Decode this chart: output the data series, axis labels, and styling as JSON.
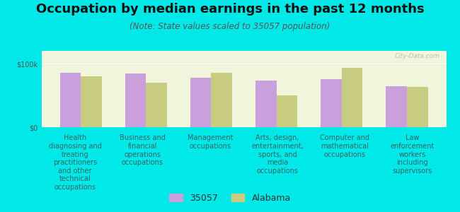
{
  "title": "Occupation by median earnings in the past 12 months",
  "subtitle": "(Note: State values scaled to 35057 population)",
  "background_outer": "#00e8e8",
  "background_inner": "#f0f5dc",
  "bar_color_35057": "#c9a0dc",
  "bar_color_alabama": "#c8cc80",
  "ylim": [
    0,
    120000
  ],
  "ytick_labels": [
    "$0",
    "$100k"
  ],
  "ytick_values": [
    0,
    100000
  ],
  "categories": [
    "Health\ndiagnosing and\ntreating\npractitioners\nand other\ntechnical\noccupations",
    "Business and\nfinancial\noperations\noccupations",
    "Management\noccupations",
    "Arts, design,\nentertainment,\nsports, and\nmedia\noccupations",
    "Computer and\nmathematical\noccupations",
    "Law\nenforcement\nworkers\nincluding\nsupervisors"
  ],
  "values_35057": [
    85000,
    84000,
    78000,
    73000,
    76000,
    64000
  ],
  "values_alabama": [
    80000,
    70000,
    86000,
    50000,
    93000,
    63000
  ],
  "legend_label_1": "35057",
  "legend_label_2": "Alabama",
  "watermark": "City-Data.com",
  "bar_width": 0.32,
  "title_fontsize": 13,
  "subtitle_fontsize": 8.5,
  "tick_fontsize": 7,
  "legend_fontsize": 9
}
